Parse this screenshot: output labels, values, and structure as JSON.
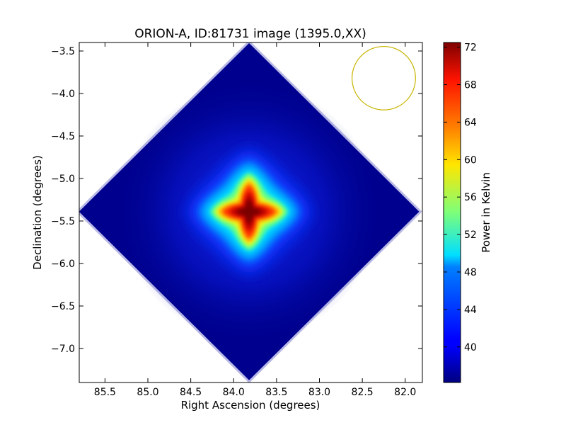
{
  "chart_data": {
    "type": "heatmap",
    "title": "ORION-A, ID:81731 image (1395.0,XX)",
    "xlabel": "Right Ascension (degrees)",
    "ylabel": "Declination (degrees)",
    "xlim": [
      85.8,
      81.8
    ],
    "ylim": [
      -7.4,
      -3.4
    ],
    "x_ticks": [
      "85.5",
      "85.0",
      "84.5",
      "84.0",
      "83.5",
      "83.0",
      "82.5",
      "82.0"
    ],
    "y_ticks": [
      "−3.5",
      "−4.0",
      "−4.5",
      "−5.0",
      "−5.5",
      "−6.0",
      "−6.5",
      "−7.0"
    ],
    "x_tick_values": [
      85.5,
      85.0,
      84.5,
      84.0,
      83.5,
      83.0,
      82.5,
      82.0
    ],
    "y_tick_values": [
      -3.5,
      -4.0,
      -4.5,
      -5.0,
      -5.5,
      -6.0,
      -6.5,
      -7.0
    ],
    "map": {
      "shape": "diamond",
      "center_ra": 83.82,
      "center_dec": -5.39,
      "half_extent_deg": 2.0,
      "background_level": 37,
      "peak_level": 72
    },
    "beam_circle": {
      "ra": 82.25,
      "dec": -3.82,
      "radius_deg": 0.37,
      "color": "#c8b400"
    },
    "colorbar": {
      "label": "Power in Kelvin",
      "colormap": "jet",
      "vmin": 36.2,
      "vmax": 72.5,
      "ticks": [
        "40",
        "44",
        "48",
        "52",
        "56",
        "60",
        "64",
        "68",
        "72"
      ],
      "tick_values": [
        40,
        44,
        48,
        52,
        56,
        60,
        64,
        68,
        72
      ]
    },
    "grid": false,
    "legend": "none"
  }
}
